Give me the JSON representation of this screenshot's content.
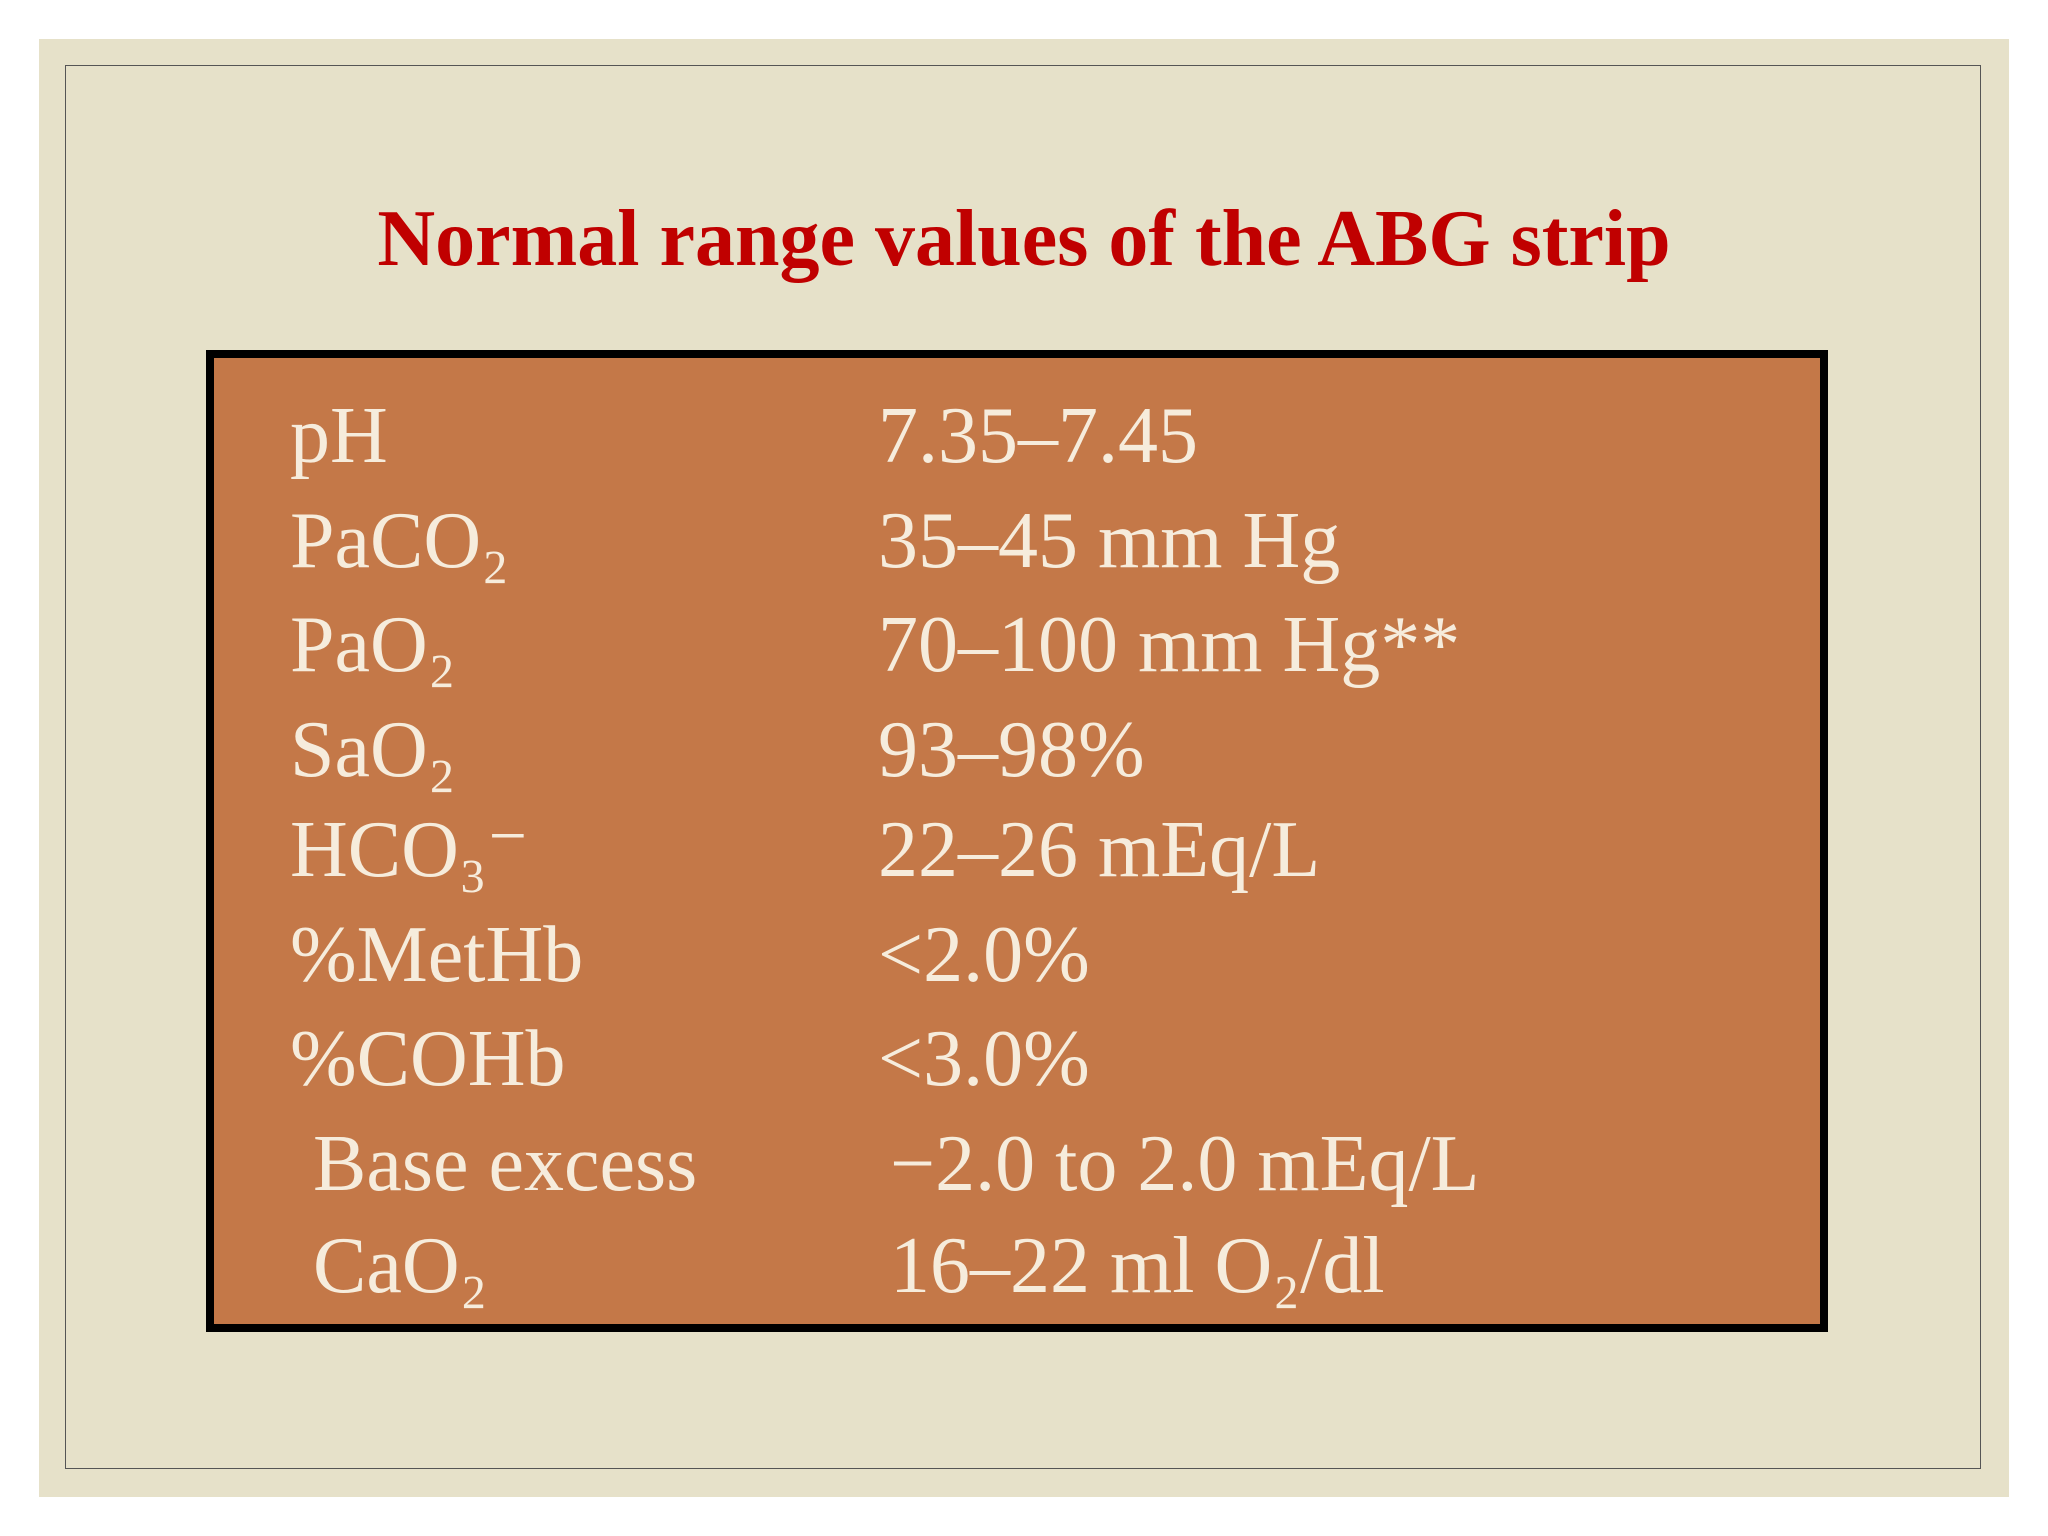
{
  "title": "Normal range values of the ABG strip",
  "table": {
    "rows": [
      [
        "pH",
        "7.35–7.45"
      ],
      [
        "PaCO₂",
        "35–45 mm Hg"
      ],
      [
        "PaO₂",
        "70–100 mm Hg**"
      ],
      [
        "SaO₂",
        "93–98%"
      ],
      [
        "HCO₃⁻",
        "22–26 mEq/L"
      ],
      [
        "%MetHb",
        "<2.0%"
      ],
      [
        "%COHb",
        "<3.0%"
      ],
      [
        "Base excess",
        "−2.0 to 2.0 mEq/L"
      ],
      [
        "CaO₂",
        "16–22 ml O₂/dl"
      ]
    ]
  }
}
